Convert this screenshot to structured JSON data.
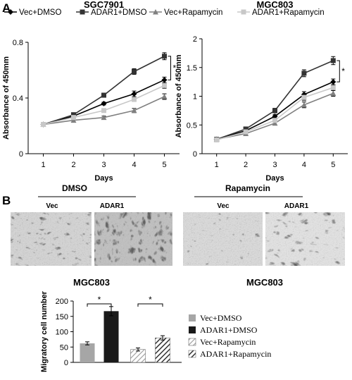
{
  "panel_labels": {
    "a": "A",
    "b": "B"
  },
  "legend_top": [
    {
      "label": "Vec+DMSO",
      "color": "#000000",
      "marker": "diamond"
    },
    {
      "label": "ADAR1+DMSO",
      "color": "#333333",
      "marker": "square"
    },
    {
      "label": "Vec+Rapamycin",
      "color": "#808080",
      "marker": "triangle"
    },
    {
      "label": "ADAR1+Rapamycin",
      "color": "#c8c8c8",
      "marker": "square"
    }
  ],
  "micro": {
    "dmso_label": "DMSO",
    "rapa_label": "Rapamycin",
    "vec_label": "Vec",
    "adar_label": "ADAR1",
    "cell_line_left": "MGC803",
    "cell_line_right": "MGC803"
  },
  "bar_legend": [
    {
      "label": "Vec+DMSO",
      "fill": "#a6a6a6"
    },
    {
      "label": "ADAR1+DMSO",
      "fill": "#1a1a1a"
    },
    {
      "label": "Vec+Rapamycin",
      "fill": "hatch-light"
    },
    {
      "label": "ADAR1+Rapamycin",
      "fill": "hatch-dark"
    }
  ],
  "chart_data": [
    {
      "type": "line",
      "title": "SGC7901",
      "xlabel": "Days",
      "ylabel": "Absorbance of 450mm",
      "x": [
        1,
        2,
        3,
        4,
        5
      ],
      "xlim": [
        0.5,
        5.5
      ],
      "ylim": [
        0,
        0.8
      ],
      "yticks": [
        0,
        0.4,
        0.8
      ],
      "ytick_labels": [
        "0",
        "0.4",
        "0.8"
      ],
      "grid": false,
      "significance": "*",
      "series": [
        {
          "name": "Vec+DMSO",
          "values": [
            0.21,
            0.27,
            0.36,
            0.43,
            0.53
          ],
          "err": [
            0.01,
            0.01,
            0.01,
            0.02,
            0.02
          ],
          "color": "#000000",
          "marker": "diamond"
        },
        {
          "name": "ADAR1+DMSO",
          "values": [
            0.21,
            0.28,
            0.42,
            0.59,
            0.7
          ],
          "err": [
            0.01,
            0.01,
            0.015,
            0.02,
            0.025
          ],
          "color": "#333333",
          "marker": "square"
        },
        {
          "name": "Vec+Rapamycin",
          "values": [
            0.21,
            0.24,
            0.26,
            0.31,
            0.41
          ],
          "err": [
            0.01,
            0.01,
            0.01,
            0.015,
            0.02
          ],
          "color": "#808080",
          "marker": "triangle"
        },
        {
          "name": "ADAR1+Rapamycin",
          "values": [
            0.21,
            0.26,
            0.31,
            0.39,
            0.49
          ],
          "err": [
            0.01,
            0.01,
            0.01,
            0.015,
            0.02
          ],
          "color": "#c8c8c8",
          "marker": "square"
        }
      ]
    },
    {
      "type": "line",
      "title": "MGC803",
      "xlabel": "Days",
      "ylabel": "Absorbance of 450mm",
      "x": [
        1,
        2,
        3,
        4,
        5
      ],
      "xlim": [
        0.5,
        5.5
      ],
      "ylim": [
        0,
        2
      ],
      "yticks": [
        0,
        0.5,
        1,
        1.5,
        2
      ],
      "ytick_labels": [
        "0",
        "0.5",
        "1",
        "1.5",
        "2"
      ],
      "grid": false,
      "significance": "*",
      "series": [
        {
          "name": "Vec+DMSO",
          "values": [
            0.25,
            0.4,
            0.65,
            1.03,
            1.25
          ],
          "err": [
            0.02,
            0.03,
            0.03,
            0.05,
            0.05
          ],
          "color": "#000000",
          "marker": "diamond"
        },
        {
          "name": "ADAR1+DMSO",
          "values": [
            0.25,
            0.43,
            0.75,
            1.4,
            1.62
          ],
          "err": [
            0.02,
            0.03,
            0.04,
            0.06,
            0.07
          ],
          "color": "#333333",
          "marker": "square"
        },
        {
          "name": "Vec+Rapamycin",
          "values": [
            0.25,
            0.35,
            0.53,
            0.85,
            1.05
          ],
          "err": [
            0.02,
            0.02,
            0.03,
            0.05,
            0.05
          ],
          "color": "#808080",
          "marker": "triangle"
        },
        {
          "name": "ADAR1+Rapamycin",
          "values": [
            0.24,
            0.38,
            0.58,
            0.98,
            1.15
          ],
          "err": [
            0.02,
            0.02,
            0.03,
            0.05,
            0.05
          ],
          "color": "#c8c8c8",
          "marker": "square"
        }
      ]
    },
    {
      "type": "bar",
      "title": "",
      "xlabel": "",
      "ylabel": "Migratory cell number",
      "categories": [
        "Vec+DMSO",
        "ADAR1+DMSO",
        "Vec+Rapamycin",
        "ADAR1+Rapamycin"
      ],
      "values": [
        62,
        167,
        42,
        80
      ],
      "err": [
        5,
        15,
        5,
        7
      ],
      "ylim": [
        0,
        200
      ],
      "yticks": [
        0,
        50,
        100,
        150,
        200
      ],
      "ytick_labels": [
        "0",
        "50",
        "100",
        "150",
        "200"
      ],
      "grid": false,
      "significance": [
        "*",
        "*"
      ]
    }
  ]
}
